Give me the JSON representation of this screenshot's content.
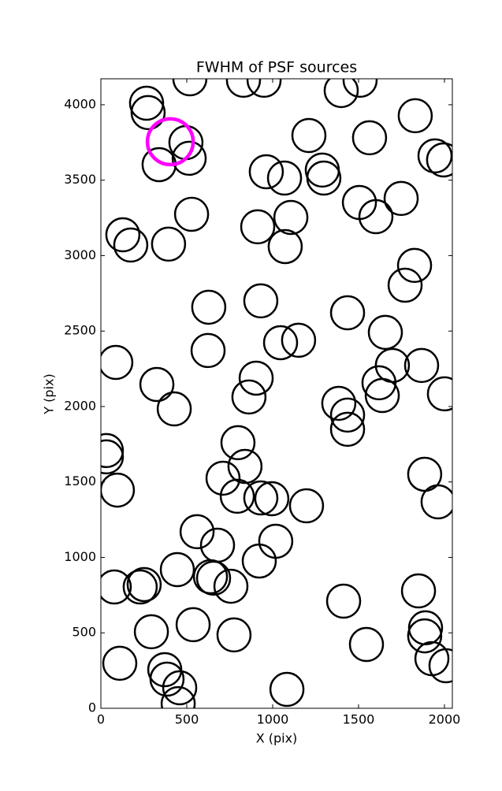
{
  "chart_data": {
    "type": "scatter",
    "title": "FWHM of PSF sources",
    "xlabel": "X (pix)",
    "ylabel": "Y (pix)",
    "xlim": [
      0,
      2046
    ],
    "ylim": [
      0,
      4172
    ],
    "xticks": [
      0,
      500,
      1000,
      1500,
      2000
    ],
    "yticks": [
      0,
      500,
      1000,
      1500,
      2000,
      2500,
      3000,
      3500,
      4000
    ],
    "series": [
      {
        "color": "#000000",
        "x": [
          266,
          275,
          518,
          830,
          950,
          1399,
          1509,
          1830,
          1211,
          1564,
          495,
          339,
          514,
          963,
          1069,
          1289,
          1298,
          1505,
          1601,
          1748,
          1945,
          1995,
          528,
          128,
          174,
          394,
          913,
          1106,
          1073,
          1826,
          1771,
          628,
          931,
          1436,
          624,
          1046,
          1151,
          1656,
          87,
          1697,
          1867,
          326,
          904,
          862,
          1619,
          1638,
          427,
          1385,
          1436,
          1436,
          2000,
          32,
          32,
          96,
          798,
          839,
          711,
          794,
          931,
          995,
          1197,
          1885,
          1963,
          560,
          679,
          1018,
          922,
          445,
          638,
          656,
          757,
          78,
          229,
          252,
          1849,
          1413,
          294,
          537,
          775,
          1890,
          1885,
          1546,
          1927,
          2009,
          110,
          372,
          385,
          459,
          450,
          1083
        ],
        "values": [
          4010,
          3948,
          4172,
          4162,
          4162,
          4094,
          4162,
          3927,
          3796,
          3781,
          3749,
          3603,
          3645,
          3556,
          3514,
          3567,
          3514,
          3352,
          3258,
          3379,
          3661,
          3634,
          3274,
          3138,
          3070,
          3076,
          3191,
          3253,
          3060,
          2935,
          2804,
          2658,
          2700,
          2621,
          2371,
          2423,
          2439,
          2491,
          2292,
          2272,
          2272,
          2146,
          2188,
          2063,
          2157,
          2073,
          1984,
          2021,
          1943,
          1849,
          2084,
          1708,
          1666,
          1446,
          1760,
          1603,
          1525,
          1405,
          1394,
          1389,
          1342,
          1551,
          1368,
          1170,
          1081,
          1107,
          976,
          919,
          872,
          862,
          809,
          804,
          804,
          820,
          778,
          710,
          507,
          554,
          486,
          533,
          480,
          423,
          329,
          282,
          298,
          256,
          193,
          136,
          31,
          125
        ]
      },
      {
        "color": "#ff00ff",
        "x": [
          404
        ],
        "values": [
          3755
        ]
      }
    ]
  }
}
